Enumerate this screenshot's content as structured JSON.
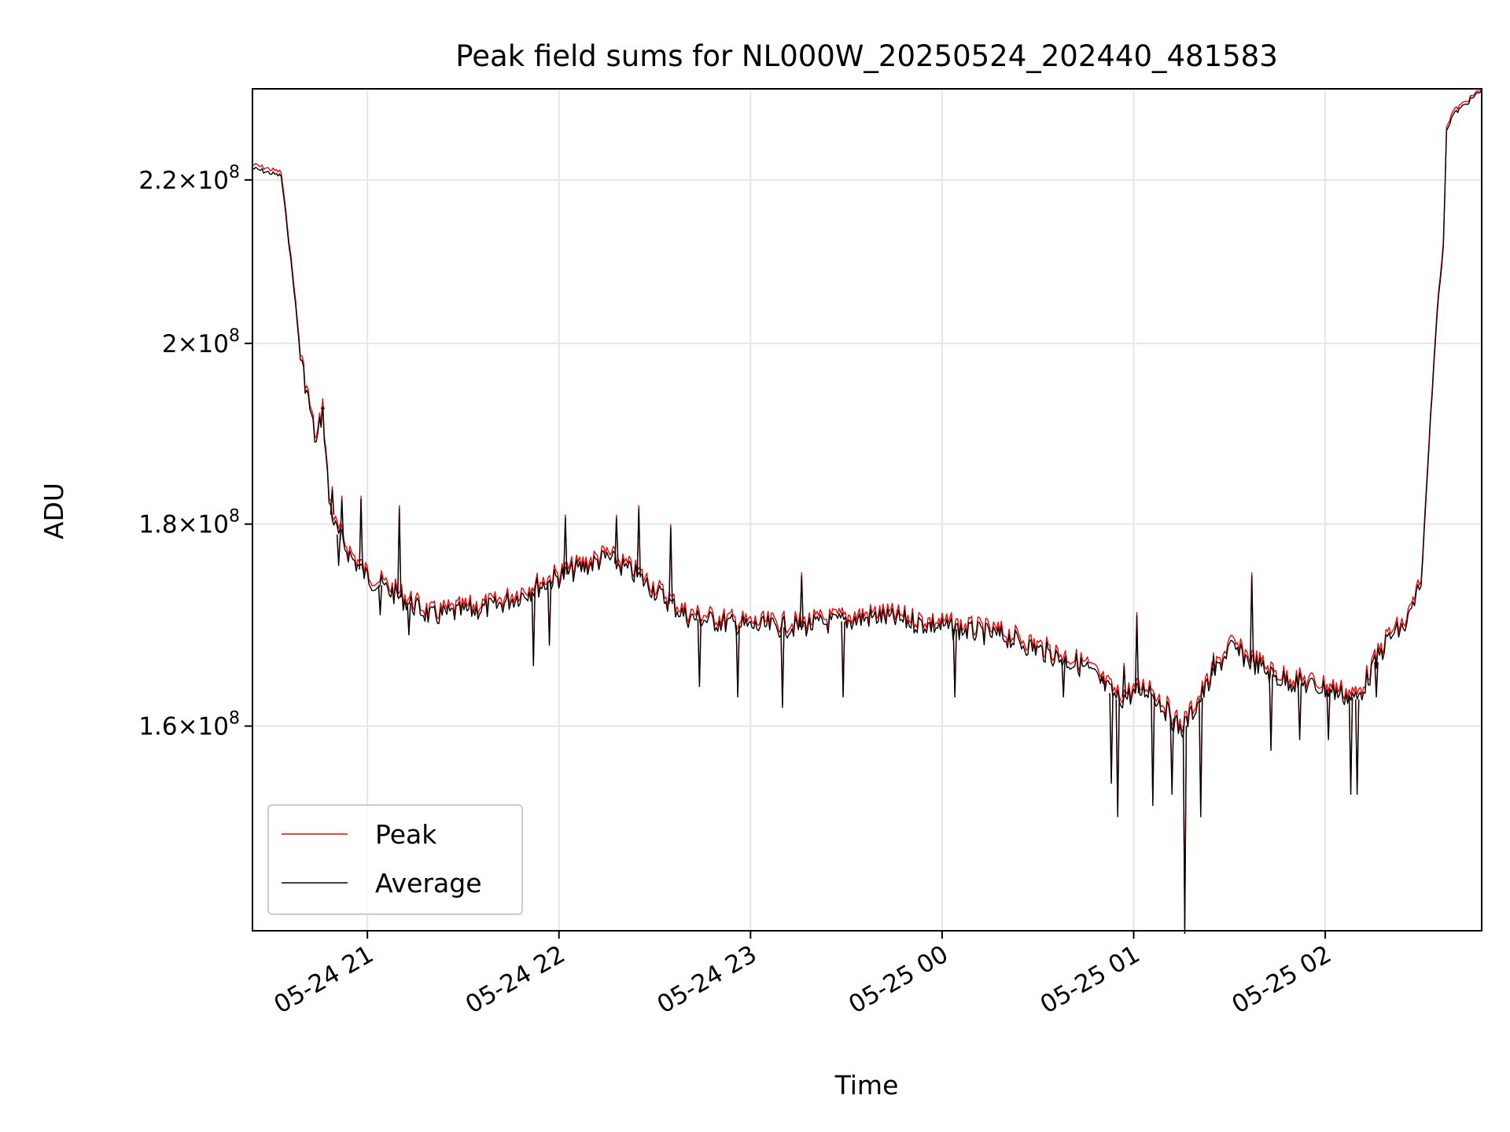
{
  "chart_data": {
    "type": "line",
    "title": "Peak field sums for NL000W_20250524_202440_481583",
    "xlabel": "Time",
    "ylabel": "ADU",
    "yscale": "log",
    "grid": true,
    "legend_position": "lower-left",
    "xlim": [
      "2025-05-24 20:24",
      "2025-05-25 02:49"
    ],
    "ylim": [
      142000000,
      232000000
    ],
    "x_ticks": [
      {
        "value": "2025-05-24 21:00",
        "label": "05-24 21"
      },
      {
        "value": "2025-05-24 22:00",
        "label": "05-24 22"
      },
      {
        "value": "2025-05-24 23:00",
        "label": "05-24 23"
      },
      {
        "value": "2025-05-25 00:00",
        "label": "05-25 00"
      },
      {
        "value": "2025-05-25 01:00",
        "label": "05-25 01"
      },
      {
        "value": "2025-05-25 02:00",
        "label": "05-25 02"
      }
    ],
    "y_ticks": [
      {
        "value": 160000000,
        "mantissa": "1.6",
        "base": "10",
        "exp": "8"
      },
      {
        "value": 180000000,
        "mantissa": "1.8",
        "base": "10",
        "exp": "8"
      },
      {
        "value": 200000000,
        "mantissa": "2",
        "base": "10",
        "exp": "8"
      },
      {
        "value": 220000000,
        "mantissa": "2.2",
        "base": "10",
        "exp": "8"
      }
    ],
    "series": [
      {
        "name": "Peak",
        "color": "#ff0000",
        "points": [
          [
            "2025-05-24 20:24",
            222000000
          ],
          [
            "2025-05-24 20:33",
            221000000
          ],
          [
            "2025-05-24 20:35",
            214000000
          ],
          [
            "2025-05-24 20:37",
            207000000
          ],
          [
            "2025-05-24 20:39",
            199000000
          ],
          [
            "2025-05-24 20:42",
            193000000
          ],
          [
            "2025-05-24 20:44",
            189000000
          ],
          [
            "2025-05-24 20:46",
            193000000
          ],
          [
            "2025-05-24 20:48",
            183000000
          ],
          [
            "2025-05-24 20:50",
            180000000
          ],
          [
            "2025-05-24 20:55",
            177000000
          ],
          [
            "2025-05-24 21:00",
            175000000
          ],
          [
            "2025-05-24 21:20",
            171000000
          ],
          [
            "2025-05-24 21:40",
            172000000
          ],
          [
            "2025-05-24 22:00",
            175000000
          ],
          [
            "2025-05-24 22:15",
            177000000
          ],
          [
            "2025-05-24 22:25",
            175000000
          ],
          [
            "2025-05-24 22:40",
            171000000
          ],
          [
            "2025-05-24 23:00",
            170000000
          ],
          [
            "2025-05-24 23:15",
            170000000
          ],
          [
            "2025-05-24 23:40",
            171000000
          ],
          [
            "2025-05-25 00:00",
            170000000
          ],
          [
            "2025-05-25 00:20",
            169000000
          ],
          [
            "2025-05-25 00:45",
            166000000
          ],
          [
            "2025-05-25 00:55",
            163000000
          ],
          [
            "2025-05-25 01:05",
            164000000
          ],
          [
            "2025-05-25 01:15",
            160000000
          ],
          [
            "2025-05-25 01:30",
            168000000
          ],
          [
            "2025-05-25 01:45",
            165000000
          ],
          [
            "2025-05-25 02:00",
            164000000
          ],
          [
            "2025-05-25 02:10",
            163000000
          ],
          [
            "2025-05-25 02:20",
            169000000
          ],
          [
            "2025-05-25 02:25",
            170000000
          ],
          [
            "2025-05-25 02:30",
            174000000
          ],
          [
            "2025-05-25 02:33",
            192000000
          ],
          [
            "2025-05-25 02:35",
            204000000
          ],
          [
            "2025-05-25 02:37",
            212000000
          ],
          [
            "2025-05-25 02:38",
            227000000
          ],
          [
            "2025-05-25 02:40",
            229000000
          ],
          [
            "2025-05-25 02:49",
            232000000
          ]
        ]
      },
      {
        "name": "Average",
        "color": "#000000",
        "points": [
          [
            "2025-05-24 20:24",
            221500000
          ],
          [
            "2025-05-24 20:33",
            220500000
          ],
          [
            "2025-05-24 20:35",
            213500000
          ],
          [
            "2025-05-24 20:37",
            206500000
          ],
          [
            "2025-05-24 20:39",
            198500000
          ],
          [
            "2025-05-24 20:42",
            192500000
          ],
          [
            "2025-05-24 20:44",
            188500000
          ],
          [
            "2025-05-24 20:46",
            192500000
          ],
          [
            "2025-05-24 20:48",
            182500000
          ],
          [
            "2025-05-24 20:50",
            179500000
          ],
          [
            "2025-05-24 20:55",
            176500000
          ],
          [
            "2025-05-24 21:00",
            174500000
          ],
          [
            "2025-05-24 21:20",
            170500000
          ],
          [
            "2025-05-24 21:40",
            171500000
          ],
          [
            "2025-05-24 22:00",
            174500000
          ],
          [
            "2025-05-24 22:15",
            176500000
          ],
          [
            "2025-05-24 22:25",
            174500000
          ],
          [
            "2025-05-24 22:40",
            170500000
          ],
          [
            "2025-05-24 23:00",
            169500000
          ],
          [
            "2025-05-24 23:15",
            169500000
          ],
          [
            "2025-05-24 23:40",
            170500000
          ],
          [
            "2025-05-25 00:00",
            169500000
          ],
          [
            "2025-05-25 00:20",
            168500000
          ],
          [
            "2025-05-25 00:45",
            165500000
          ],
          [
            "2025-05-25 00:55",
            162500000
          ],
          [
            "2025-05-25 01:05",
            163500000
          ],
          [
            "2025-05-25 01:15",
            159500000
          ],
          [
            "2025-05-25 01:30",
            167500000
          ],
          [
            "2025-05-25 01:45",
            164500000
          ],
          [
            "2025-05-25 02:00",
            163500000
          ],
          [
            "2025-05-25 02:10",
            162500000
          ],
          [
            "2025-05-25 02:20",
            168500000
          ],
          [
            "2025-05-25 02:25",
            169500000
          ],
          [
            "2025-05-25 02:30",
            173500000
          ],
          [
            "2025-05-25 02:33",
            191500000
          ],
          [
            "2025-05-25 02:35",
            203500000
          ],
          [
            "2025-05-25 02:37",
            211500000
          ],
          [
            "2025-05-25 02:38",
            226500000
          ],
          [
            "2025-05-25 02:40",
            228500000
          ],
          [
            "2025-05-25 02:49",
            231800000
          ]
        ]
      }
    ],
    "spikes": [
      {
        "time": "2025-05-24 20:46",
        "value": 193000000
      },
      {
        "time": "2025-05-24 20:49",
        "value": 184000000
      },
      {
        "time": "2025-05-24 20:51",
        "value": 176000000
      },
      {
        "time": "2025-05-24 20:52",
        "value": 183000000
      },
      {
        "time": "2025-05-24 20:58",
        "value": 183000000
      },
      {
        "time": "2025-05-24 21:04",
        "value": 171000000
      },
      {
        "time": "2025-05-24 21:10",
        "value": 182000000
      },
      {
        "time": "2025-05-24 21:13",
        "value": 169000000
      },
      {
        "time": "2025-05-24 21:52",
        "value": 166000000
      },
      {
        "time": "2025-05-24 21:57",
        "value": 168000000
      },
      {
        "time": "2025-05-24 22:02",
        "value": 181000000
      },
      {
        "time": "2025-05-24 22:18",
        "value": 181000000
      },
      {
        "time": "2025-05-24 22:25",
        "value": 182000000
      },
      {
        "time": "2025-05-24 22:35",
        "value": 180000000
      },
      {
        "time": "2025-05-24 22:44",
        "value": 164000000
      },
      {
        "time": "2025-05-24 22:56",
        "value": 163000000
      },
      {
        "time": "2025-05-24 23:10",
        "value": 162000000
      },
      {
        "time": "2025-05-24 23:16",
        "value": 175000000
      },
      {
        "time": "2025-05-24 23:29",
        "value": 163000000
      },
      {
        "time": "2025-05-25 00:04",
        "value": 163000000
      },
      {
        "time": "2025-05-25 00:38",
        "value": 163000000
      },
      {
        "time": "2025-05-25 00:50",
        "value": 165000000
      },
      {
        "time": "2025-05-25 00:53",
        "value": 155000000
      },
      {
        "time": "2025-05-25 00:55",
        "value": 152000000
      },
      {
        "time": "2025-05-25 00:57",
        "value": 166000000
      },
      {
        "time": "2025-05-25 01:01",
        "value": 171000000
      },
      {
        "time": "2025-05-25 01:06",
        "value": 153000000
      },
      {
        "time": "2025-05-25 01:12",
        "value": 154000000
      },
      {
        "time": "2025-05-25 01:16",
        "value": 142000000
      },
      {
        "time": "2025-05-25 01:21",
        "value": 152000000
      },
      {
        "time": "2025-05-25 01:25",
        "value": 167000000
      },
      {
        "time": "2025-05-25 01:37",
        "value": 175000000
      },
      {
        "time": "2025-05-25 01:43",
        "value": 158000000
      },
      {
        "time": "2025-05-25 01:52",
        "value": 159000000
      },
      {
        "time": "2025-05-25 02:01",
        "value": 159000000
      },
      {
        "time": "2025-05-25 02:08",
        "value": 154000000
      },
      {
        "time": "2025-05-25 02:10",
        "value": 154000000
      },
      {
        "time": "2025-05-25 02:16",
        "value": 163000000
      }
    ]
  }
}
